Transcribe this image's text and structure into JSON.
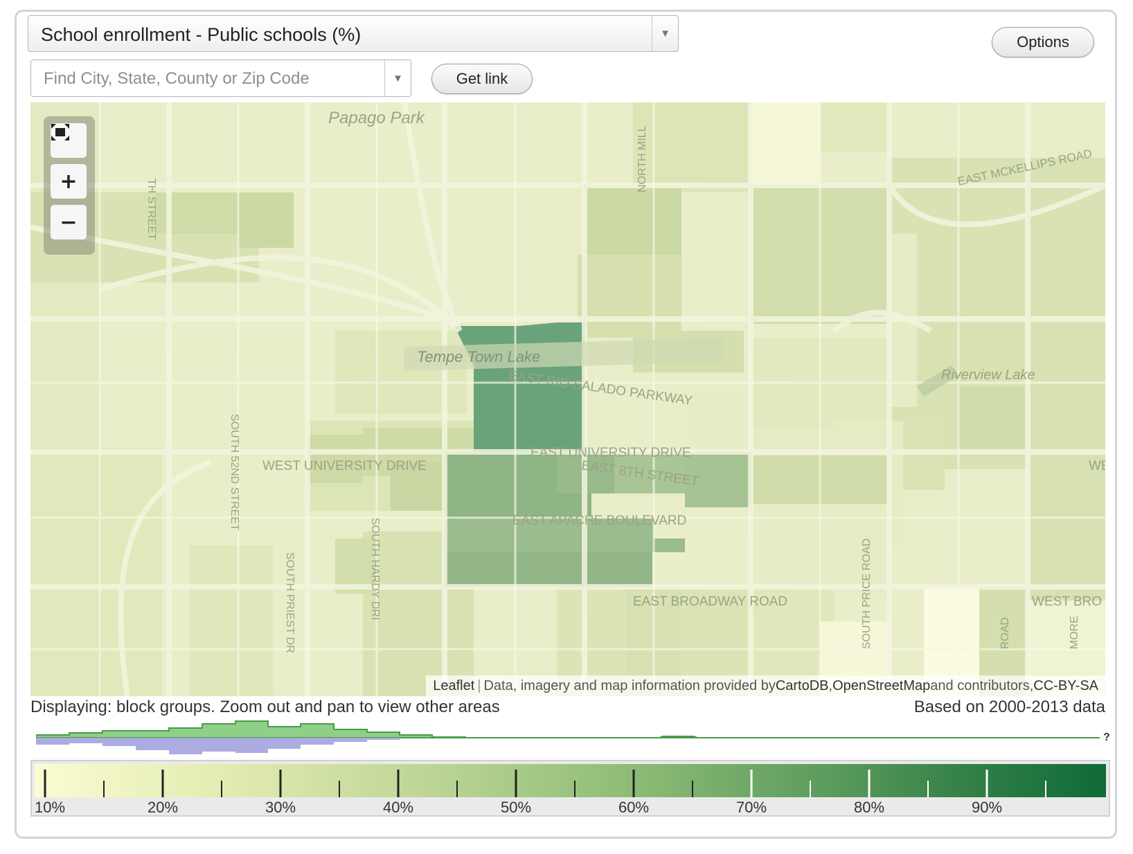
{
  "variable_select": {
    "value": "School enrollment - Public schools (%)",
    "arrow_icon": "triangle-down-icon"
  },
  "search": {
    "placeholder": "Find City, State, County or Zip Code",
    "value": ""
  },
  "buttons": {
    "get_link": "Get link",
    "options": "Options"
  },
  "map": {
    "labels": {
      "papago_park": "Papago Park",
      "tempe_town_lake": "Tempe Town Lake",
      "riverview_lake": "Riverview Lake",
      "east_mckellips_road": "EAST MCKELLIPS ROAD",
      "east_rio_salado_parkway": "EAST RIO SALADO PARKWAY",
      "east_university_drive": "EAST UNIVERSITY DRIVE",
      "west_university_drive": "WEST UNIVERSITY DRIVE",
      "east_8th_street": "EAST 8TH STREET",
      "east_apache_boulevard": "EAST APACHE BOULEVARD",
      "east_broadway_road": "EAST BROADWAY ROAD",
      "west_broadway_partial": "WEST BRO",
      "north_mill": "NORTH MILL",
      "south_52nd_street": "SOUTH 52ND STREET",
      "south_priest_dr": "SOUTH PRIEST DR",
      "south_hardy_dr": "SOUTH HARDY DRI",
      "south_price_road": "SOUTH PRICE ROAD",
      "th_street": "TH STREET",
      "we_partial": "WE",
      "road_partial": "ROAD",
      "more_partial": "MORE"
    },
    "zoom": {
      "fullscreen_icon": "fullscreen-icon",
      "zoom_in": "+",
      "zoom_out": "−"
    },
    "attribution": {
      "leaflet": "Leaflet",
      "separator": "|",
      "text1": " Data, imagery and map information provided by ",
      "cartodb": "CartoDB",
      "comma1": ", ",
      "osm": "OpenStreetMap",
      "text2": " and contributors, ",
      "license": "CC-BY-SA"
    }
  },
  "status": {
    "displaying": "Displaying: block groups. Zoom out and pan to view other areas",
    "based_on": "Based on 2000-2013 data"
  },
  "histogram": {
    "unknown_marker": "?"
  },
  "legend": {
    "labels": [
      "10%",
      "20%",
      "30%",
      "40%",
      "50%",
      "60%",
      "70%",
      "80%",
      "90%"
    ],
    "colors": [
      "#fafcd2",
      "#e2ebb0",
      "#bfd698",
      "#8fbd78",
      "#5c9c5c",
      "#2a7a44",
      "#0f6b38"
    ]
  }
}
